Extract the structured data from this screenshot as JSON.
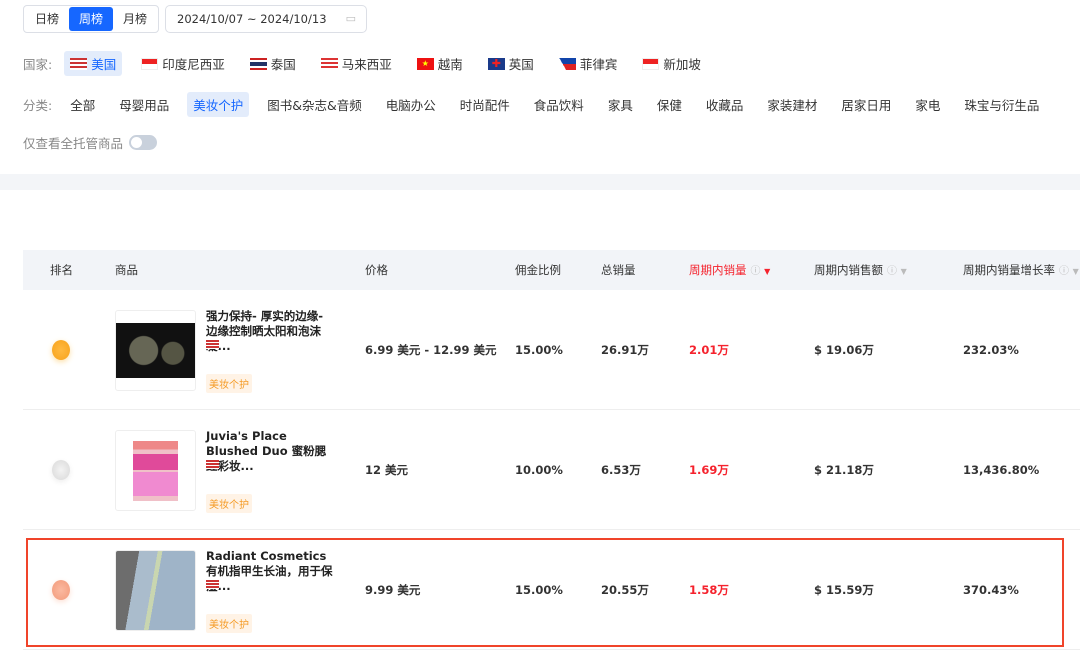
{
  "period_tabs": [
    "日榜",
    "周榜",
    "月榜"
  ],
  "period_active": 1,
  "date_range": "2024/10/07 ~ 2024/10/13",
  "country_label": "国家:",
  "countries": [
    "美国",
    "印度尼西亚",
    "泰国",
    "马来西亚",
    "越南",
    "英国",
    "菲律宾",
    "新加坡"
  ],
  "country_active": 0,
  "category_label": "分类:",
  "categories": [
    "全部",
    "母婴用品",
    "美妆个护",
    "图书&杂志&音频",
    "电脑办公",
    "时尚配件",
    "食品饮料",
    "家具",
    "保健",
    "收藏品",
    "家装建材",
    "居家日用",
    "家电",
    "珠宝与衍生品"
  ],
  "category_active": 2,
  "toggle_label": "仅查看全托管商品",
  "toggle_on": false,
  "columns": [
    "排名",
    "商品",
    "价格",
    "佣金比例",
    "总销量",
    "周期内销量",
    "周期内销售额",
    "周期内销量增长率"
  ],
  "sorted_column": "周期内销量",
  "accent": "#1667ff",
  "highlight_color": "#f5222d",
  "rows": [
    {
      "rank": 1,
      "name": "强力保持- 厚实的边缘- 边缘控制晒太阳和泡沫凝...",
      "tag": "美妆个护",
      "price": "6.99 美元 - 12.99 美元",
      "commission": "15.00%",
      "total_sales": "26.91万",
      "period_sales": "2.01万",
      "period_revenue": "$ 19.06万",
      "growth": "232.03%"
    },
    {
      "rank": 2,
      "name": "Juvia's Place Blushed Duo 蜜粉腮红彩妆...",
      "tag": "美妆个护",
      "price": "12 美元",
      "commission": "10.00%",
      "total_sales": "6.53万",
      "period_sales": "1.69万",
      "period_revenue": "$ 21.18万",
      "growth": "13,436.80%"
    },
    {
      "rank": 3,
      "name": "Radiant Cosmetics有机指甲生长油，用于保湿...",
      "tag": "美妆个护",
      "price": "9.99 美元",
      "commission": "15.00%",
      "total_sales": "20.55万",
      "period_sales": "1.58万",
      "period_revenue": "$ 15.59万",
      "growth": "370.43%"
    }
  ]
}
